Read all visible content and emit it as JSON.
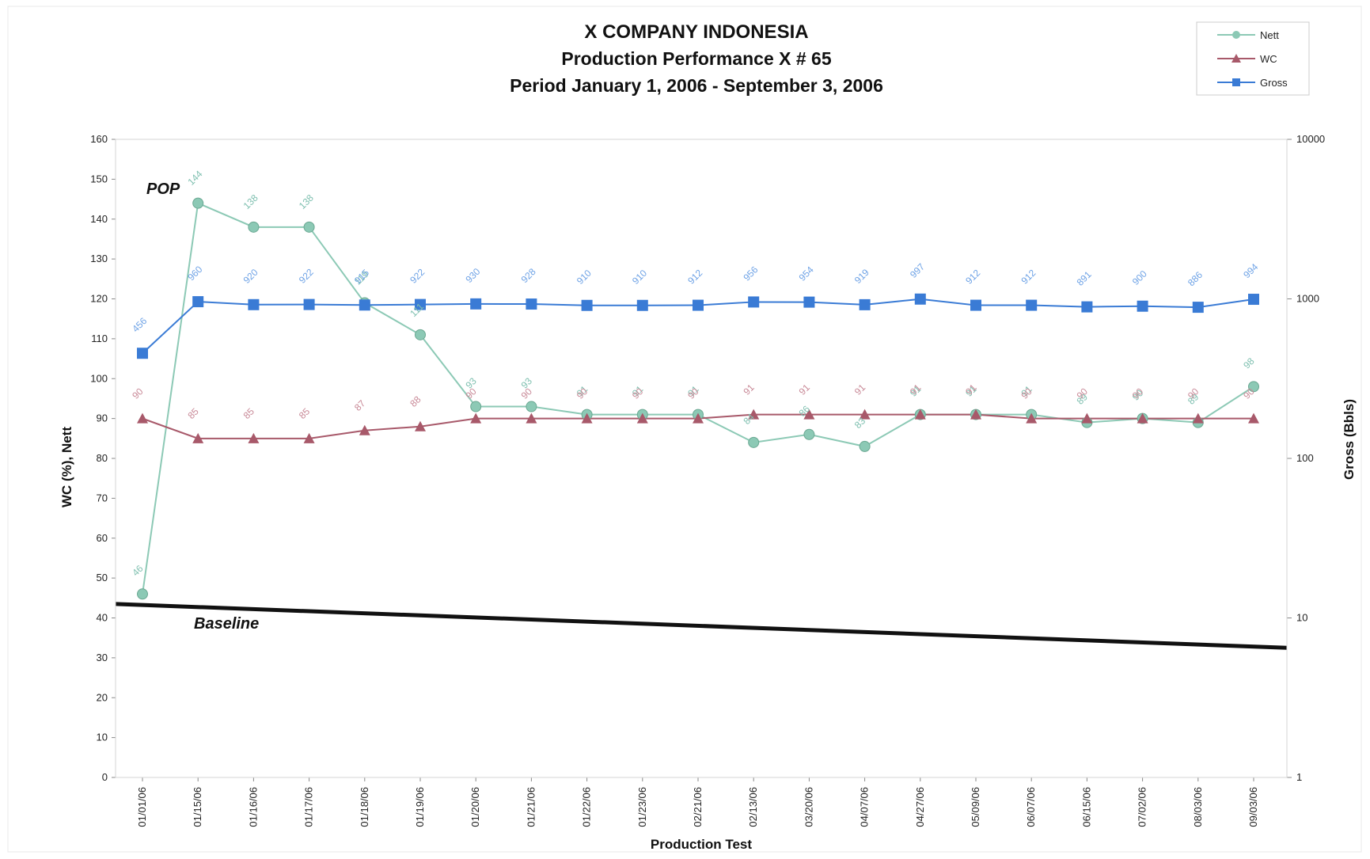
{
  "chart_data": {
    "type": "line",
    "title": "X COMPANY INDONESIA",
    "subtitle": "Production Performance X # 65",
    "period": "Period January 1, 2006 -  September 3, 2006",
    "xlabel": "Production Test",
    "ylabel_left": "WC (%), Nett",
    "ylabel_right": "Gross (Bbls)",
    "ylim_left": [
      0,
      160
    ],
    "left_ticks": [
      "0",
      "10",
      "20",
      "30",
      "40",
      "50",
      "60",
      "70",
      "80",
      "90",
      "100",
      "110",
      "120",
      "130",
      "140",
      "150",
      "160"
    ],
    "right_scale": "log",
    "ylim_right": [
      1,
      10000
    ],
    "right_ticks": [
      "1",
      "10",
      "100",
      "1000",
      "10000"
    ],
    "legend_position": "top-right",
    "categories": [
      "01/01/06",
      "01/15/06",
      "01/16/06",
      "01/17/06",
      "01/18/06",
      "01/19/06",
      "01/20/06",
      "01/21/06",
      "01/22/06",
      "01/23/06",
      "02/21/06",
      "02/13/06",
      "03/20/06",
      "04/07/06",
      "04/27/06",
      "05/09/06",
      "06/07/06",
      "06/15/06",
      "07/02/06",
      "08/03/06",
      "09/03/06"
    ],
    "series": [
      {
        "name": "Nett",
        "axis": "left",
        "color": "#8cc9b5",
        "marker": "circle",
        "values": [
          46,
          144,
          138,
          138,
          119,
          111,
          93,
          93,
          91,
          91,
          91,
          84,
          86,
          83,
          91,
          91,
          91,
          89,
          90,
          89,
          98
        ],
        "labels": [
          "46",
          "144",
          "138",
          "138",
          "119",
          "111",
          "93",
          "93",
          "91",
          "91",
          "91",
          "84",
          "86",
          "83",
          "91",
          "91",
          "91",
          "89",
          "90",
          "89",
          "98"
        ]
      },
      {
        "name": "WC",
        "axis": "left",
        "color": "#a8596a",
        "marker": "triangle",
        "values": [
          90,
          85,
          85,
          85,
          87,
          88,
          90,
          90,
          90,
          90,
          90,
          91,
          91,
          91,
          91,
          91,
          90,
          90,
          90,
          90,
          90
        ],
        "labels": [
          "90",
          "85",
          "85",
          "85",
          "87",
          "88",
          "90",
          "90",
          "90",
          "90",
          "90",
          "91",
          "91",
          "91",
          "91",
          "91",
          "90",
          "90",
          "90",
          "90",
          "90"
        ]
      },
      {
        "name": "Gross",
        "axis": "right",
        "color": "#3a7bd5",
        "marker": "square",
        "values": [
          456,
          960,
          920,
          922,
          915,
          922,
          930,
          928,
          910,
          910,
          912,
          956,
          954,
          919,
          997,
          912,
          912,
          891,
          900,
          886,
          994
        ],
        "labels": [
          "456",
          "960",
          "920",
          "922",
          "915",
          "922",
          "930",
          "928",
          "910",
          "910",
          "912",
          "956",
          "954",
          "919",
          "997",
          "912",
          "912",
          "891",
          "900",
          "886",
          "994"
        ]
      }
    ],
    "annotations": [
      {
        "text": "POP"
      },
      {
        "text": "Baseline"
      }
    ],
    "baseline": {
      "left_start": 43.5,
      "left_end": 32.5
    }
  }
}
